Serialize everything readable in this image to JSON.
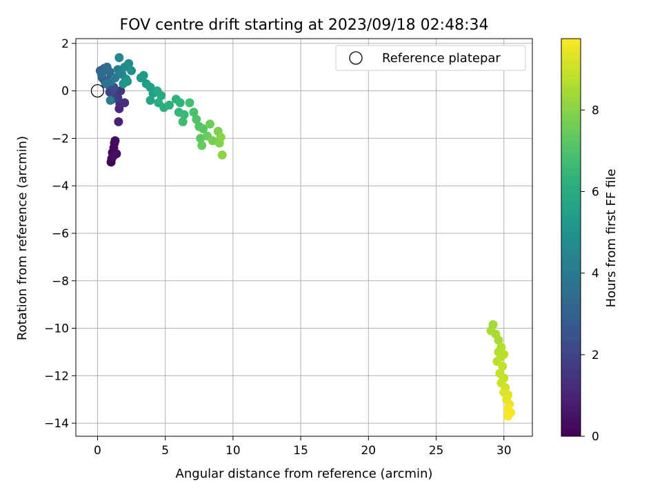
{
  "chart_data": {
    "type": "scatter",
    "title": "FOV centre drift starting at 2023/09/18 02:48:34",
    "xlabel": "Angular distance from reference (arcmin)",
    "ylabel": "Rotation from reference (arcmin)",
    "xlim": [
      -1.6,
      32.1
    ],
    "ylim": [
      -14.55,
      2.2
    ],
    "xticks": [
      0,
      5,
      10,
      15,
      20,
      25,
      30
    ],
    "yticks": [
      2,
      0,
      -2,
      -4,
      -6,
      -8,
      -10,
      -12,
      -14
    ],
    "grid": true,
    "legend": {
      "position": "top-right",
      "entries": [
        "Reference platepar"
      ]
    },
    "reference_point": {
      "x": 0,
      "y": 0,
      "label": "Reference platepar"
    },
    "colorbar": {
      "label": "Hours from first FF file",
      "min": 0,
      "max": 9.75,
      "ticks": [
        0,
        2,
        4,
        6,
        8
      ],
      "colormap": "viridis"
    },
    "points": [
      {
        "x": 1.0,
        "y": -3.0,
        "t": 0.05
      },
      {
        "x": 1.05,
        "y": -2.85,
        "t": 0.1
      },
      {
        "x": 1.1,
        "y": -2.6,
        "t": 0.15
      },
      {
        "x": 1.2,
        "y": -2.4,
        "t": 0.2
      },
      {
        "x": 1.25,
        "y": -2.2,
        "t": 0.25
      },
      {
        "x": 1.3,
        "y": -2.1,
        "t": 0.3
      },
      {
        "x": 1.4,
        "y": -2.65,
        "t": 0.35
      },
      {
        "x": 1.15,
        "y": -2.75,
        "t": 0.4
      },
      {
        "x": 1.55,
        "y": -1.3,
        "t": 0.9
      },
      {
        "x": 1.6,
        "y": -0.75,
        "t": 1.1
      },
      {
        "x": 1.65,
        "y": -0.55,
        "t": 1.2
      },
      {
        "x": 2.0,
        "y": -0.5,
        "t": 1.3
      },
      {
        "x": 1.5,
        "y": -0.3,
        "t": 1.45
      },
      {
        "x": 1.7,
        "y": 0.0,
        "t": 1.6
      },
      {
        "x": 1.3,
        "y": -0.2,
        "t": 1.75
      },
      {
        "x": 1.1,
        "y": -0.35,
        "t": 1.9
      },
      {
        "x": 0.9,
        "y": -0.05,
        "t": 2.05
      },
      {
        "x": 1.2,
        "y": 0.15,
        "t": 2.2
      },
      {
        "x": 0.8,
        "y": 0.25,
        "t": 2.35
      },
      {
        "x": 0.55,
        "y": 0.4,
        "t": 2.5
      },
      {
        "x": 1.0,
        "y": 0.6,
        "t": 2.65
      },
      {
        "x": 0.35,
        "y": 0.55,
        "t": 2.8
      },
      {
        "x": 0.2,
        "y": 0.85,
        "t": 2.95
      },
      {
        "x": 0.5,
        "y": 0.95,
        "t": 3.1
      },
      {
        "x": 0.9,
        "y": 0.8,
        "t": 3.25
      },
      {
        "x": 0.7,
        "y": 1.0,
        "t": 3.4
      },
      {
        "x": 0.3,
        "y": 0.7,
        "t": 3.55
      },
      {
        "x": 0.6,
        "y": 0.3,
        "t": 3.7
      },
      {
        "x": 1.0,
        "y": 0.4,
        "t": 3.85
      },
      {
        "x": 1.3,
        "y": 0.55,
        "t": 4.0
      },
      {
        "x": 0.95,
        "y": -0.4,
        "t": 4.1
      },
      {
        "x": 1.5,
        "y": 0.9,
        "t": 4.2
      },
      {
        "x": 1.8,
        "y": 0.7,
        "t": 4.35
      },
      {
        "x": 1.6,
        "y": 1.4,
        "t": 4.5
      },
      {
        "x": 2.0,
        "y": 1.0,
        "t": 4.6
      },
      {
        "x": 2.3,
        "y": 1.15,
        "t": 4.7
      },
      {
        "x": 2.1,
        "y": 0.5,
        "t": 4.8
      },
      {
        "x": 2.5,
        "y": 0.85,
        "t": 4.9
      },
      {
        "x": 1.9,
        "y": 0.3,
        "t": 5.0
      },
      {
        "x": 2.2,
        "y": 0.4,
        "t": 5.1
      },
      {
        "x": 3.2,
        "y": 0.55,
        "t": 5.2
      },
      {
        "x": 3.4,
        "y": 0.65,
        "t": 5.3
      },
      {
        "x": 3.6,
        "y": 0.3,
        "t": 5.4
      },
      {
        "x": 3.9,
        "y": 0.15,
        "t": 5.5
      },
      {
        "x": 4.1,
        "y": -0.1,
        "t": 5.6
      },
      {
        "x": 3.9,
        "y": -0.4,
        "t": 5.7
      },
      {
        "x": 4.4,
        "y": 0.0,
        "t": 5.8
      },
      {
        "x": 4.7,
        "y": -0.2,
        "t": 5.9
      },
      {
        "x": 4.5,
        "y": -0.5,
        "t": 6.0
      },
      {
        "x": 4.9,
        "y": -0.7,
        "t": 6.1
      },
      {
        "x": 5.3,
        "y": -0.6,
        "t": 6.2
      },
      {
        "x": 5.8,
        "y": -0.35,
        "t": 6.3
      },
      {
        "x": 6.1,
        "y": -0.5,
        "t": 6.4
      },
      {
        "x": 6.0,
        "y": -0.9,
        "t": 6.5
      },
      {
        "x": 6.4,
        "y": -1.0,
        "t": 6.6
      },
      {
        "x": 6.3,
        "y": -1.3,
        "t": 6.7
      },
      {
        "x": 6.8,
        "y": -0.5,
        "t": 6.8
      },
      {
        "x": 7.1,
        "y": -0.9,
        "t": 6.9
      },
      {
        "x": 7.3,
        "y": -1.2,
        "t": 7.0
      },
      {
        "x": 7.5,
        "y": -1.5,
        "t": 7.1
      },
      {
        "x": 7.8,
        "y": -1.6,
        "t": 7.2
      },
      {
        "x": 7.6,
        "y": -2.0,
        "t": 7.3
      },
      {
        "x": 7.7,
        "y": -2.3,
        "t": 7.4
      },
      {
        "x": 8.1,
        "y": -1.9,
        "t": 7.5
      },
      {
        "x": 8.3,
        "y": -1.4,
        "t": 7.6
      },
      {
        "x": 8.5,
        "y": -2.1,
        "t": 7.7
      },
      {
        "x": 8.9,
        "y": -1.7,
        "t": 7.8
      },
      {
        "x": 9.0,
        "y": -2.2,
        "t": 7.9
      },
      {
        "x": 9.1,
        "y": -1.95,
        "t": 8.0
      },
      {
        "x": 9.2,
        "y": -2.7,
        "t": 8.05
      },
      {
        "x": 29.2,
        "y": -9.85,
        "t": 8.4
      },
      {
        "x": 29.05,
        "y": -10.1,
        "t": 8.45
      },
      {
        "x": 29.4,
        "y": -10.25,
        "t": 8.5
      },
      {
        "x": 29.6,
        "y": -10.5,
        "t": 8.55
      },
      {
        "x": 29.8,
        "y": -10.8,
        "t": 8.6
      },
      {
        "x": 29.6,
        "y": -11.0,
        "t": 8.65
      },
      {
        "x": 29.8,
        "y": -11.2,
        "t": 8.7
      },
      {
        "x": 30.0,
        "y": -11.1,
        "t": 8.75
      },
      {
        "x": 29.5,
        "y": -11.4,
        "t": 8.8
      },
      {
        "x": 29.9,
        "y": -11.6,
        "t": 8.85
      },
      {
        "x": 29.7,
        "y": -11.9,
        "t": 8.9
      },
      {
        "x": 30.0,
        "y": -12.1,
        "t": 8.95
      },
      {
        "x": 29.8,
        "y": -12.3,
        "t": 9.0
      },
      {
        "x": 30.1,
        "y": -12.5,
        "t": 9.1
      },
      {
        "x": 30.0,
        "y": -12.7,
        "t": 9.2
      },
      {
        "x": 30.3,
        "y": -12.8,
        "t": 9.3
      },
      {
        "x": 30.2,
        "y": -13.0,
        "t": 9.4
      },
      {
        "x": 30.4,
        "y": -13.2,
        "t": 9.5
      },
      {
        "x": 30.3,
        "y": -13.4,
        "t": 9.6
      },
      {
        "x": 30.5,
        "y": -13.55,
        "t": 9.65
      },
      {
        "x": 30.3,
        "y": -13.7,
        "t": 9.7
      }
    ]
  }
}
